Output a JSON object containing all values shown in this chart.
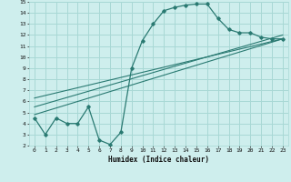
{
  "xlabel": "Humidex (Indice chaleur)",
  "bg_color": "#ceeeed",
  "grid_color": "#a8d8d5",
  "line_color": "#2a7a72",
  "xlim": [
    -0.5,
    23.5
  ],
  "ylim": [
    2,
    15
  ],
  "xticks": [
    0,
    1,
    2,
    3,
    4,
    5,
    6,
    7,
    8,
    9,
    10,
    11,
    12,
    13,
    14,
    15,
    16,
    17,
    18,
    19,
    20,
    21,
    22,
    23
  ],
  "yticks": [
    2,
    3,
    4,
    5,
    6,
    7,
    8,
    9,
    10,
    11,
    12,
    13,
    14,
    15
  ],
  "curve_x": [
    0,
    1,
    2,
    3,
    4,
    5,
    6,
    7,
    8,
    9,
    10,
    11,
    12,
    13,
    14,
    15,
    16,
    17,
    18,
    19,
    20,
    21,
    22,
    23
  ],
  "curve_y": [
    4.5,
    3.0,
    4.5,
    4.0,
    4.0,
    5.5,
    2.5,
    2.1,
    3.2,
    9.0,
    11.5,
    13.0,
    14.2,
    14.5,
    14.7,
    14.8,
    14.8,
    13.5,
    12.5,
    12.2,
    12.2,
    11.8,
    11.65,
    11.65
  ],
  "line1_x": [
    0,
    23
  ],
  "line1_y": [
    6.3,
    11.65
  ],
  "line2_x": [
    0,
    23
  ],
  "line2_y": [
    5.5,
    12.0
  ],
  "line3_x": [
    0,
    23
  ],
  "line3_y": [
    4.8,
    11.65
  ]
}
